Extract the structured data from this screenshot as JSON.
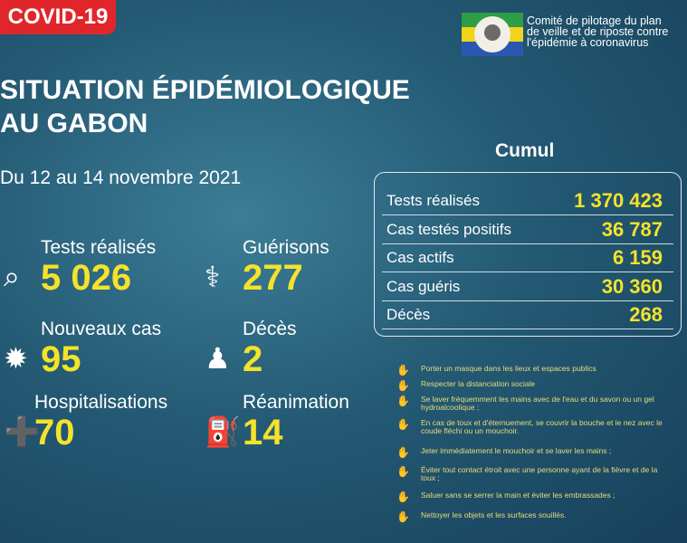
{
  "header": {
    "badge": "COVID-19",
    "org_lines": [
      "Comité de pilotage du plan",
      "de veille et de riposte contre",
      "l'épidémie à coronavirus"
    ],
    "title_lines": [
      "SITUATION ÉPIDÉMIOLOGIQUE",
      "AU GABON"
    ],
    "period": "Du 12 au 14 novembre 2021"
  },
  "stats": [
    {
      "label": "Tests réalisés",
      "value": "5 026"
    },
    {
      "label": "Guérisons",
      "value": "277"
    },
    {
      "label": "Nouveaux cas",
      "value": "95"
    },
    {
      "label": "Décès",
      "value": "2"
    },
    {
      "label": "Hospitalisations",
      "value": "70"
    },
    {
      "label": "Réanimation",
      "value": "14"
    }
  ],
  "cumul": {
    "title": "Cumul",
    "rows": [
      [
        "Tests réalisés",
        "1 370 423"
      ],
      [
        "Cas testés positifs",
        "36 787"
      ],
      [
        "Cas actifs",
        "6 159"
      ],
      [
        "Cas guéris",
        "30 360"
      ],
      [
        "Décès",
        "268"
      ]
    ]
  },
  "tips": [
    "Porter un masque dans les lieux et espaces publics",
    "Respecter la distanciation sociale",
    "Se laver fréquemment les mains avec de l'eau et du savon ou un gel hydroalcoolique ;",
    "En cas de toux et d'éternuement, se couvrir la bouche et le nez avec le coude fléchi ou un mouchoir.",
    "Jeter immédiatement le mouchoir et se laver les mains ;",
    "Éviter tout contact étroit avec une personne ayant de la fièvre et de la toux ;",
    "Saluer sans se serrer la main et éviter les embrassades ;",
    "Nettoyer les objets et les surfaces souillés."
  ]
}
